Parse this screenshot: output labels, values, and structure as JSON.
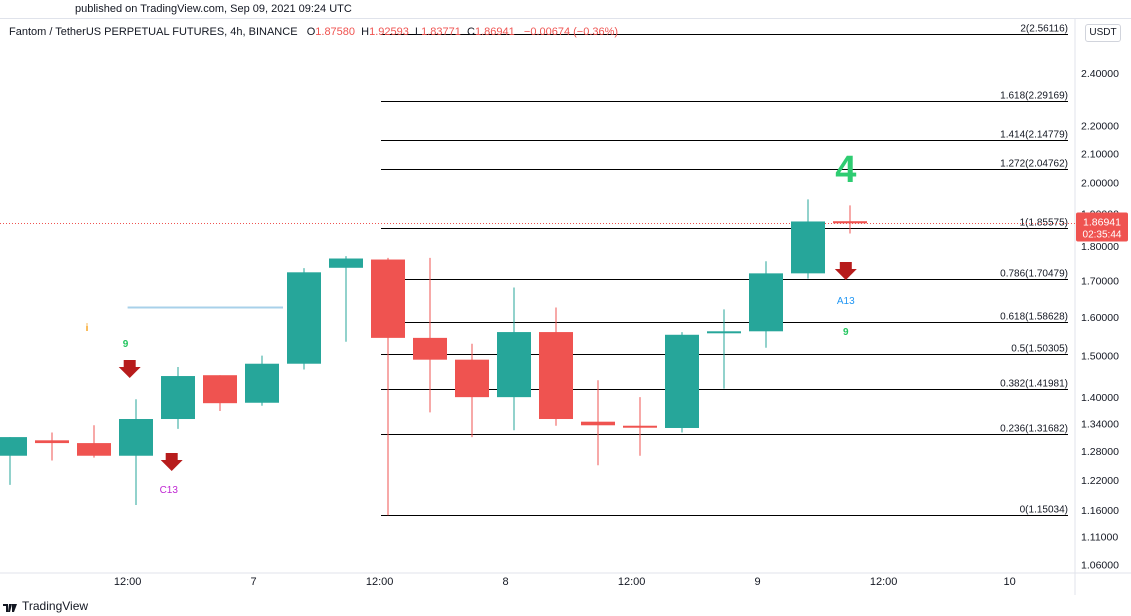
{
  "header": {
    "published": "published on TradingView.com, Sep 09, 2021 09:24 UTC"
  },
  "legend": {
    "symbol": "Fantom / TetherUS PERPETUAL FUTURES, 4h, BINANCE",
    "o_label": "O",
    "o_value": "1.87580",
    "h_label": "H",
    "h_value": "1.92593",
    "l_label": "L",
    "l_value": "1.83771",
    "c_label": "C",
    "c_value": "1.86941",
    "change": "−0.00674 (−0.36%)"
  },
  "currency": "USDT",
  "footer": {
    "brand": "TradingView"
  },
  "colors": {
    "up": "#26a69a",
    "down": "#ef5350",
    "fib_line": "#000000",
    "arrow": "#b71c1c",
    "green_text": "#2ecc71",
    "setup_count": "#22c55e",
    "c13": "#c026d3",
    "a13": "#2196f3",
    "orange": "#f7a21b",
    "blue_line": "#a8d1ea"
  },
  "chart_data": {
    "type": "candlestick",
    "title": "Fantom / TetherUS PERPETUAL FUTURES, 4h, BINANCE",
    "scale": "log",
    "ylim": [
      1.045,
      2.63
    ],
    "x_tick_labels": [
      "12:00",
      "7",
      "12:00",
      "8",
      "12:00",
      "9",
      "12:00",
      "10"
    ],
    "y_tick_labels": [
      "2.40000",
      "2.20000",
      "2.10000",
      "2.00000",
      "1.90000",
      "1.80000",
      "1.70000",
      "1.60000",
      "1.50000",
      "1.40000",
      "1.34000",
      "1.28000",
      "1.22000",
      "1.16000",
      "1.11000",
      "1.06000"
    ],
    "y_top_label": "2",
    "candles": [
      {
        "o": 1.27,
        "h": 1.31,
        "l": 1.21,
        "c": 1.31
      },
      {
        "o": 1.303,
        "h": 1.32,
        "l": 1.26,
        "c": 1.297
      },
      {
        "o": 1.297,
        "h": 1.336,
        "l": 1.266,
        "c": 1.27
      },
      {
        "o": 1.27,
        "h": 1.395,
        "l": 1.17,
        "c": 1.35
      },
      {
        "o": 1.35,
        "h": 1.472,
        "l": 1.328,
        "c": 1.45
      },
      {
        "o": 1.452,
        "h": 1.452,
        "l": 1.368,
        "c": 1.386
      },
      {
        "o": 1.387,
        "h": 1.5,
        "l": 1.38,
        "c": 1.48
      },
      {
        "o": 1.48,
        "h": 1.735,
        "l": 1.466,
        "c": 1.723
      },
      {
        "o": 1.736,
        "h": 1.77,
        "l": 1.535,
        "c": 1.763
      },
      {
        "o": 1.76,
        "h": 1.765,
        "l": 1.15034,
        "c": 1.545
      },
      {
        "o": 1.545,
        "h": 1.765,
        "l": 1.365,
        "c": 1.49
      },
      {
        "o": 1.49,
        "h": 1.53,
        "l": 1.31,
        "c": 1.4
      },
      {
        "o": 1.4,
        "h": 1.68,
        "l": 1.325,
        "c": 1.56
      },
      {
        "o": 1.56,
        "h": 1.625,
        "l": 1.335,
        "c": 1.35
      },
      {
        "o": 1.344,
        "h": 1.44,
        "l": 1.25,
        "c": 1.336
      },
      {
        "o": 1.335,
        "h": 1.4,
        "l": 1.27,
        "c": 1.333
      },
      {
        "o": 1.33,
        "h": 1.56,
        "l": 1.32,
        "c": 1.553
      },
      {
        "o": 1.557,
        "h": 1.62,
        "l": 1.42,
        "c": 1.562
      },
      {
        "o": 1.562,
        "h": 1.755,
        "l": 1.52,
        "c": 1.72
      },
      {
        "o": 1.72,
        "h": 1.945,
        "l": 1.705,
        "c": 1.875
      },
      {
        "o": 1.8758,
        "h": 1.92593,
        "l": 1.83771,
        "c": 1.86941
      }
    ],
    "fib_levels": [
      {
        "label": "2(2.56116)",
        "value": 2.56116
      },
      {
        "label": "1.618(2.29169)",
        "value": 2.29169
      },
      {
        "label": "1.414(2.14779)",
        "value": 2.14779
      },
      {
        "label": "1.272(2.04762)",
        "value": 2.04762
      },
      {
        "label": "1(1.85575)",
        "value": 1.85575
      },
      {
        "label": "0.786(1.70479)",
        "value": 1.70479
      },
      {
        "label": "0.618(1.58628)",
        "value": 1.58628
      },
      {
        "label": "0.5(1.50305)",
        "value": 1.50305
      },
      {
        "label": "0.382(1.41981)",
        "value": 1.41981
      },
      {
        "label": "0.236(1.31682)",
        "value": 1.31682
      },
      {
        "label": "0(1.15034)",
        "value": 1.15034
      }
    ],
    "last_price": "1.86941",
    "countdown": "02:35:44",
    "annotations": {
      "big_count": "4",
      "setup_nine": "9",
      "c13": "C13",
      "a13": "A13",
      "small_marker": "i"
    }
  }
}
